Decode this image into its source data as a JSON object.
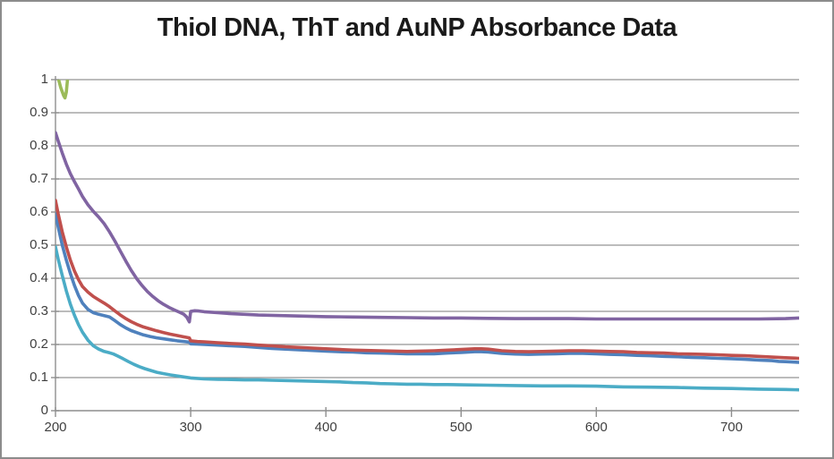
{
  "window": {
    "background": "#ffffff",
    "border_color": "#8c8c8c"
  },
  "chart_data": {
    "type": "line",
    "title": "Thiol DNA, ThT and AuNP Absorbance Data",
    "xlabel": "",
    "ylabel": "",
    "xlim": [
      200,
      750
    ],
    "ylim": [
      0,
      1
    ],
    "grid": {
      "horizontal": true,
      "vertical": false
    },
    "legend_position": "none",
    "colors": {
      "axis": "#8e8e8e",
      "gridline": "#949494",
      "tick_label": "#3f3f3f",
      "title": "#1a1a1a"
    },
    "x_ticks": [
      {
        "v": 200,
        "label": "200"
      },
      {
        "v": 300,
        "label": "300"
      },
      {
        "v": 400,
        "label": "400"
      },
      {
        "v": 500,
        "label": "500"
      },
      {
        "v": 600,
        "label": "600"
      },
      {
        "v": 700,
        "label": "700"
      }
    ],
    "y_ticks": [
      {
        "v": 0,
        "label": "0"
      },
      {
        "v": 0.1,
        "label": "0.1"
      },
      {
        "v": 0.2,
        "label": "0.2"
      },
      {
        "v": 0.3,
        "label": "0.3"
      },
      {
        "v": 0.4,
        "label": "0.4"
      },
      {
        "v": 0.5,
        "label": "0.5"
      },
      {
        "v": 0.6,
        "label": "0.6"
      },
      {
        "v": 0.7,
        "label": "0.7"
      },
      {
        "v": 0.8,
        "label": "0.8"
      },
      {
        "v": 0.9,
        "label": "0.9"
      },
      {
        "v": 1,
        "label": "1"
      }
    ],
    "series": [
      {
        "name": "series-1-blue",
        "color": "#4F81BD",
        "points": [
          [
            200,
            0.595
          ],
          [
            202,
            0.555
          ],
          [
            205,
            0.5
          ],
          [
            208,
            0.455
          ],
          [
            211,
            0.415
          ],
          [
            214,
            0.378
          ],
          [
            217,
            0.348
          ],
          [
            220,
            0.325
          ],
          [
            224,
            0.306
          ],
          [
            228,
            0.296
          ],
          [
            232,
            0.291
          ],
          [
            236,
            0.287
          ],
          [
            240,
            0.283
          ],
          [
            244,
            0.272
          ],
          [
            248,
            0.26
          ],
          [
            252,
            0.25
          ],
          [
            256,
            0.242
          ],
          [
            260,
            0.236
          ],
          [
            265,
            0.229
          ],
          [
            270,
            0.224
          ],
          [
            275,
            0.22
          ],
          [
            280,
            0.217
          ],
          [
            285,
            0.214
          ],
          [
            290,
            0.211
          ],
          [
            295,
            0.209
          ],
          [
            299,
            0.207
          ],
          [
            300,
            0.202
          ],
          [
            305,
            0.201
          ],
          [
            310,
            0.2
          ],
          [
            320,
            0.198
          ],
          [
            330,
            0.196
          ],
          [
            340,
            0.194
          ],
          [
            350,
            0.191
          ],
          [
            360,
            0.188
          ],
          [
            370,
            0.186
          ],
          [
            380,
            0.184
          ],
          [
            390,
            0.182
          ],
          [
            400,
            0.18
          ],
          [
            410,
            0.178
          ],
          [
            420,
            0.177
          ],
          [
            430,
            0.175
          ],
          [
            440,
            0.174
          ],
          [
            450,
            0.173
          ],
          [
            460,
            0.172
          ],
          [
            470,
            0.172
          ],
          [
            480,
            0.172
          ],
          [
            490,
            0.174
          ],
          [
            500,
            0.176
          ],
          [
            510,
            0.178
          ],
          [
            515,
            0.178
          ],
          [
            520,
            0.177
          ],
          [
            530,
            0.173
          ],
          [
            540,
            0.171
          ],
          [
            550,
            0.17
          ],
          [
            560,
            0.171
          ],
          [
            570,
            0.172
          ],
          [
            580,
            0.173
          ],
          [
            590,
            0.173
          ],
          [
            600,
            0.172
          ],
          [
            610,
            0.17
          ],
          [
            620,
            0.169
          ],
          [
            630,
            0.167
          ],
          [
            640,
            0.166
          ],
          [
            650,
            0.164
          ],
          [
            660,
            0.163
          ],
          [
            670,
            0.161
          ],
          [
            680,
            0.16
          ],
          [
            690,
            0.158
          ],
          [
            700,
            0.157
          ],
          [
            710,
            0.155
          ],
          [
            720,
            0.153
          ],
          [
            730,
            0.151
          ],
          [
            735,
            0.149
          ],
          [
            740,
            0.148
          ],
          [
            750,
            0.146
          ]
        ]
      },
      {
        "name": "series-2-red",
        "color": "#C0504D",
        "points": [
          [
            200,
            0.635
          ],
          [
            202,
            0.595
          ],
          [
            205,
            0.54
          ],
          [
            208,
            0.495
          ],
          [
            211,
            0.455
          ],
          [
            214,
            0.422
          ],
          [
            217,
            0.396
          ],
          [
            220,
            0.375
          ],
          [
            224,
            0.358
          ],
          [
            228,
            0.345
          ],
          [
            232,
            0.335
          ],
          [
            236,
            0.325
          ],
          [
            240,
            0.314
          ],
          [
            244,
            0.301
          ],
          [
            248,
            0.289
          ],
          [
            252,
            0.278
          ],
          [
            256,
            0.269
          ],
          [
            260,
            0.261
          ],
          [
            265,
            0.253
          ],
          [
            270,
            0.247
          ],
          [
            275,
            0.241
          ],
          [
            280,
            0.236
          ],
          [
            285,
            0.231
          ],
          [
            290,
            0.227
          ],
          [
            295,
            0.223
          ],
          [
            299,
            0.22
          ],
          [
            300,
            0.211
          ],
          [
            305,
            0.209
          ],
          [
            310,
            0.208
          ],
          [
            320,
            0.205
          ],
          [
            330,
            0.203
          ],
          [
            340,
            0.201
          ],
          [
            350,
            0.198
          ],
          [
            360,
            0.196
          ],
          [
            370,
            0.193
          ],
          [
            380,
            0.191
          ],
          [
            390,
            0.189
          ],
          [
            400,
            0.187
          ],
          [
            410,
            0.185
          ],
          [
            420,
            0.183
          ],
          [
            430,
            0.182
          ],
          [
            440,
            0.181
          ],
          [
            450,
            0.18
          ],
          [
            460,
            0.179
          ],
          [
            470,
            0.18
          ],
          [
            480,
            0.181
          ],
          [
            490,
            0.183
          ],
          [
            500,
            0.185
          ],
          [
            510,
            0.187
          ],
          [
            515,
            0.187
          ],
          [
            520,
            0.186
          ],
          [
            530,
            0.181
          ],
          [
            540,
            0.179
          ],
          [
            550,
            0.178
          ],
          [
            560,
            0.179
          ],
          [
            570,
            0.18
          ],
          [
            580,
            0.181
          ],
          [
            590,
            0.181
          ],
          [
            600,
            0.18
          ],
          [
            610,
            0.179
          ],
          [
            620,
            0.178
          ],
          [
            630,
            0.176
          ],
          [
            640,
            0.175
          ],
          [
            650,
            0.174
          ],
          [
            660,
            0.172
          ],
          [
            670,
            0.171
          ],
          [
            680,
            0.17
          ],
          [
            690,
            0.169
          ],
          [
            700,
            0.167
          ],
          [
            710,
            0.166
          ],
          [
            720,
            0.164
          ],
          [
            730,
            0.162
          ],
          [
            740,
            0.16
          ],
          [
            750,
            0.158
          ]
        ]
      },
      {
        "name": "series-3-green",
        "color": "#9BBB59",
        "points": [
          [
            200,
            1.06
          ],
          [
            202,
            1.005
          ],
          [
            204,
            0.975
          ],
          [
            206,
            0.952
          ],
          [
            207,
            0.945
          ],
          [
            208,
            0.962
          ],
          [
            209,
            1.005
          ],
          [
            210,
            1.06
          ]
        ]
      },
      {
        "name": "series-4-purple",
        "color": "#8064A2",
        "points": [
          [
            200,
            0.84
          ],
          [
            202,
            0.815
          ],
          [
            205,
            0.778
          ],
          [
            208,
            0.745
          ],
          [
            211,
            0.716
          ],
          [
            214,
            0.692
          ],
          [
            217,
            0.67
          ],
          [
            220,
            0.647
          ],
          [
            224,
            0.622
          ],
          [
            228,
            0.602
          ],
          [
            232,
            0.585
          ],
          [
            236,
            0.565
          ],
          [
            240,
            0.54
          ],
          [
            244,
            0.512
          ],
          [
            248,
            0.482
          ],
          [
            252,
            0.452
          ],
          [
            256,
            0.424
          ],
          [
            260,
            0.399
          ],
          [
            264,
            0.378
          ],
          [
            268,
            0.36
          ],
          [
            272,
            0.345
          ],
          [
            276,
            0.332
          ],
          [
            280,
            0.321
          ],
          [
            284,
            0.312
          ],
          [
            288,
            0.304
          ],
          [
            292,
            0.297
          ],
          [
            295,
            0.291
          ],
          [
            297,
            0.283
          ],
          [
            299,
            0.268
          ],
          [
            300,
            0.3
          ],
          [
            303,
            0.302
          ],
          [
            306,
            0.301
          ],
          [
            310,
            0.299
          ],
          [
            320,
            0.296
          ],
          [
            330,
            0.293
          ],
          [
            340,
            0.291
          ],
          [
            350,
            0.289
          ],
          [
            360,
            0.288
          ],
          [
            380,
            0.286
          ],
          [
            400,
            0.284
          ],
          [
            420,
            0.283
          ],
          [
            440,
            0.282
          ],
          [
            460,
            0.281
          ],
          [
            480,
            0.28
          ],
          [
            500,
            0.28
          ],
          [
            520,
            0.279
          ],
          [
            540,
            0.278
          ],
          [
            560,
            0.278
          ],
          [
            580,
            0.278
          ],
          [
            600,
            0.277
          ],
          [
            620,
            0.277
          ],
          [
            640,
            0.277
          ],
          [
            660,
            0.277
          ],
          [
            680,
            0.277
          ],
          [
            700,
            0.277
          ],
          [
            720,
            0.277
          ],
          [
            740,
            0.278
          ],
          [
            750,
            0.28
          ]
        ]
      },
      {
        "name": "series-5-cyan",
        "color": "#4BACC6",
        "points": [
          [
            200,
            0.495
          ],
          [
            202,
            0.458
          ],
          [
            205,
            0.408
          ],
          [
            208,
            0.362
          ],
          [
            211,
            0.322
          ],
          [
            214,
            0.288
          ],
          [
            217,
            0.26
          ],
          [
            220,
            0.237
          ],
          [
            224,
            0.213
          ],
          [
            228,
            0.196
          ],
          [
            232,
            0.186
          ],
          [
            236,
            0.179
          ],
          [
            240,
            0.175
          ],
          [
            243,
            0.171
          ],
          [
            246,
            0.165
          ],
          [
            250,
            0.157
          ],
          [
            254,
            0.148
          ],
          [
            258,
            0.14
          ],
          [
            262,
            0.133
          ],
          [
            266,
            0.127
          ],
          [
            270,
            0.122
          ],
          [
            275,
            0.116
          ],
          [
            280,
            0.112
          ],
          [
            285,
            0.108
          ],
          [
            290,
            0.105
          ],
          [
            295,
            0.102
          ],
          [
            300,
            0.099
          ],
          [
            310,
            0.096
          ],
          [
            320,
            0.095
          ],
          [
            330,
            0.094
          ],
          [
            340,
            0.093
          ],
          [
            350,
            0.093
          ],
          [
            360,
            0.092
          ],
          [
            370,
            0.091
          ],
          [
            380,
            0.09
          ],
          [
            390,
            0.089
          ],
          [
            400,
            0.088
          ],
          [
            410,
            0.087
          ],
          [
            420,
            0.085
          ],
          [
            430,
            0.084
          ],
          [
            440,
            0.082
          ],
          [
            450,
            0.081
          ],
          [
            460,
            0.08
          ],
          [
            470,
            0.08
          ],
          [
            480,
            0.079
          ],
          [
            490,
            0.079
          ],
          [
            500,
            0.078
          ],
          [
            520,
            0.077
          ],
          [
            540,
            0.076
          ],
          [
            560,
            0.075
          ],
          [
            580,
            0.075
          ],
          [
            600,
            0.074
          ],
          [
            620,
            0.072
          ],
          [
            640,
            0.071
          ],
          [
            660,
            0.07
          ],
          [
            680,
            0.068
          ],
          [
            700,
            0.067
          ],
          [
            720,
            0.065
          ],
          [
            740,
            0.064
          ],
          [
            750,
            0.063
          ]
        ]
      }
    ]
  }
}
